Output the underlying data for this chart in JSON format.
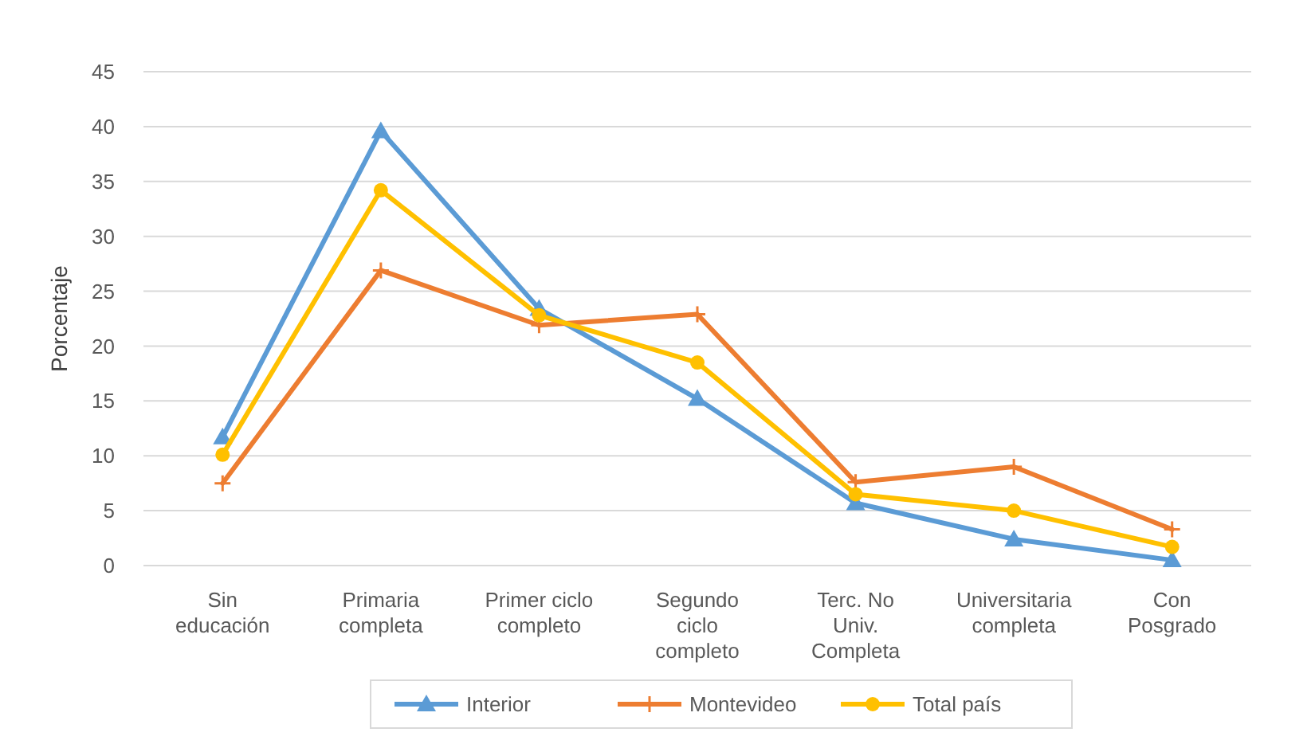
{
  "chart_data": {
    "type": "line",
    "ylabel": "Porcentaje",
    "categories": [
      "Sin\neducación",
      "Primaria\ncompleta",
      "Primer ciclo\ncompleto",
      "Segundo\nciclo\ncompleto",
      "Terc. No\nUniv.\nCompleta",
      "Universitaria\ncompleta",
      "Con\nPosgrado"
    ],
    "series": [
      {
        "name": "Interior",
        "color": "#5b9bd5",
        "marker": "triangle",
        "values": [
          11.7,
          39.6,
          23.4,
          15.2,
          5.7,
          2.4,
          0.5
        ]
      },
      {
        "name": "Montevideo",
        "color": "#ed7d31",
        "marker": "cross",
        "values": [
          7.5,
          26.9,
          21.9,
          22.9,
          7.6,
          9.0,
          3.3
        ]
      },
      {
        "name": "Total país",
        "color": "#ffc000",
        "marker": "circle",
        "values": [
          10.1,
          34.2,
          22.8,
          18.5,
          6.5,
          5.0,
          1.7
        ]
      }
    ],
    "ylim": [
      0,
      45
    ],
    "yticks": [
      0,
      5,
      10,
      15,
      20,
      25,
      30,
      35,
      40,
      45
    ],
    "grid": "y",
    "legend": "bottom",
    "line_style": "solid"
  }
}
